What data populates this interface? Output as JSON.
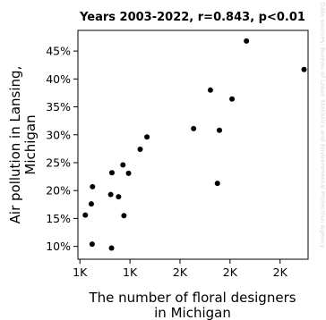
{
  "chart_data": {
    "type": "scatter",
    "title": "Years 2003-2022, r=0.843, p<0.01",
    "xlabel": [
      "The number of floral designers",
      "in Michigan"
    ],
    "ylabel": [
      "Air pollution in Lansing,",
      "Michigan"
    ],
    "watermark": "Data sources: Bureau of Labor Statistics and Environmental Protection Agency",
    "x_tick_labels": [
      "1K",
      "1K",
      "2K",
      "2K",
      "2K"
    ],
    "x_ticks": [
      1000,
      1250,
      1500,
      1750,
      2000
    ],
    "xlim": [
      990,
      2140
    ],
    "y_tick_labels": [
      "10%",
      "15%",
      "20%",
      "25%",
      "30%",
      "35%",
      "40%",
      "45%"
    ],
    "y_ticks": [
      10,
      15,
      20,
      25,
      30,
      35,
      40,
      45
    ],
    "ylim": [
      7.7,
      48.7
    ],
    "grid": false,
    "marker_color": "#000000",
    "points": [
      {
        "x": 1027,
        "y": 15.6
      },
      {
        "x": 1061,
        "y": 10.4
      },
      {
        "x": 1057,
        "y": 17.6
      },
      {
        "x": 1063,
        "y": 20.7
      },
      {
        "x": 1158,
        "y": 9.7
      },
      {
        "x": 1154,
        "y": 19.3
      },
      {
        "x": 1160,
        "y": 23.2
      },
      {
        "x": 1193,
        "y": 18.9
      },
      {
        "x": 1215,
        "y": 24.6
      },
      {
        "x": 1220,
        "y": 15.5
      },
      {
        "x": 1243,
        "y": 23.1
      },
      {
        "x": 1301,
        "y": 27.4
      },
      {
        "x": 1335,
        "y": 29.6
      },
      {
        "x": 1568,
        "y": 31.1
      },
      {
        "x": 1652,
        "y": 38.0
      },
      {
        "x": 1687,
        "y": 21.3
      },
      {
        "x": 1697,
        "y": 30.8
      },
      {
        "x": 1760,
        "y": 36.4
      },
      {
        "x": 1832,
        "y": 46.8
      },
      {
        "x": 2120,
        "y": 41.7
      }
    ]
  }
}
